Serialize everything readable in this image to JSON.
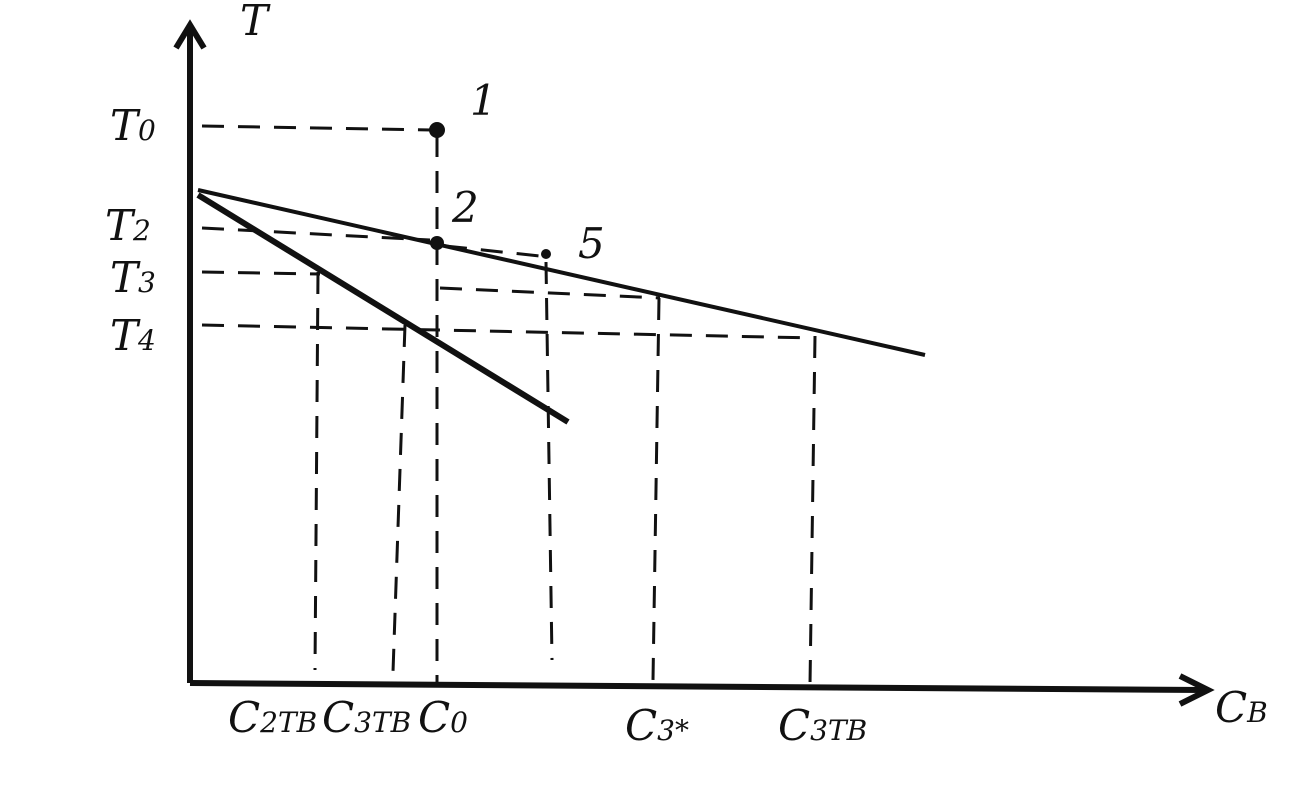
{
  "axes": {
    "y_label": {
      "main": "T"
    },
    "x_label": {
      "main": "C",
      "sub": "B"
    }
  },
  "y_labels": [
    {
      "main": "T",
      "sub": "0"
    },
    {
      "main": "T",
      "sub": "2"
    },
    {
      "main": "T",
      "sub": "3"
    },
    {
      "main": "T",
      "sub": "4"
    }
  ],
  "x_labels": [
    {
      "main": "C",
      "sub": "2TB"
    },
    {
      "main": "C",
      "sub": "3TB"
    },
    {
      "main": "C",
      "sub": "0"
    },
    {
      "main": "C",
      "sub": "3*"
    },
    {
      "main": "C",
      "sub": "3TB"
    }
  ],
  "points": [
    "1",
    "2",
    "5"
  ]
}
